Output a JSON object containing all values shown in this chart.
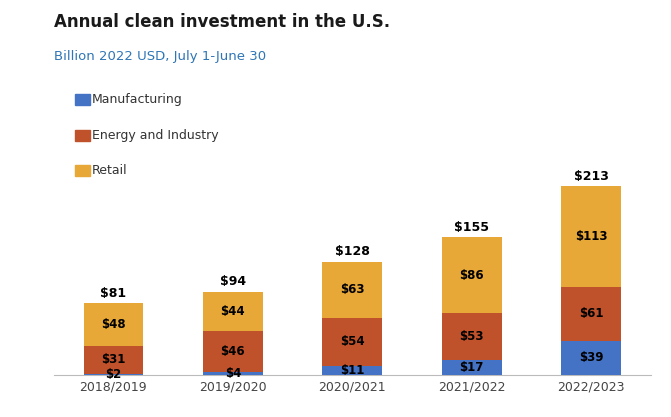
{
  "title": "Annual clean investment in the U.S.",
  "subtitle": "Billion 2022 USD, July 1-June 30",
  "categories": [
    "2018/2019",
    "2019/2020",
    "2020/2021",
    "2021/2022",
    "2022/2023"
  ],
  "manufacturing": [
    2,
    4,
    11,
    17,
    39
  ],
  "energy_and_industry": [
    31,
    46,
    54,
    53,
    61
  ],
  "retail": [
    48,
    44,
    63,
    86,
    113
  ],
  "totals": [
    81,
    94,
    128,
    155,
    213
  ],
  "color_manufacturing": "#4472C4",
  "color_energy": "#C0522B",
  "color_retail": "#E8A838",
  "title_color": "#1a1a1a",
  "subtitle_color": "#2E75B6",
  "legend_labels": [
    "Manufacturing",
    "Energy and Industry",
    "Retail"
  ],
  "bar_width": 0.5,
  "ylim": [
    0,
    235
  ]
}
